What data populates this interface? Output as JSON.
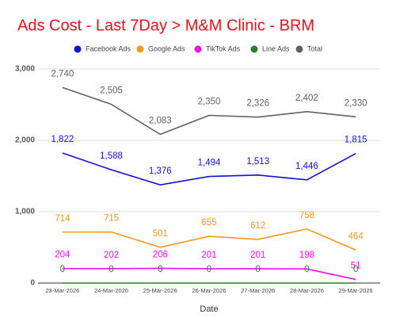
{
  "chart_data": {
    "type": "line",
    "title": "Ads Cost - Last 7Day > M&M Clinic - BRM",
    "x_label": "Date",
    "categories": [
      "23-Mar-2026",
      "24-Mar-2026",
      "25-Mar-2026",
      "26-Mar-2026",
      "27-Mar-2026",
      "28-Mar-2026",
      "29-Mar-2026"
    ],
    "series": [
      {
        "name": "Facebook Ads",
        "color": "#1010d8",
        "values": [
          1822,
          1588,
          1376,
          1494,
          1513,
          1446,
          1815
        ],
        "value_labels": [
          "1,822",
          "1,588",
          "1,376",
          "1,494",
          "1,513",
          "1,446",
          "1,815"
        ]
      },
      {
        "name": "Google Ads",
        "color": "#f09a1a",
        "values": [
          714,
          715,
          501,
          655,
          612,
          758,
          464
        ]
      },
      {
        "name": "TikTok Ads",
        "color": "#f010e8",
        "values": [
          204,
          202,
          206,
          201,
          201,
          198,
          51
        ]
      },
      {
        "name": "Line Ads",
        "color": "#2e7d32",
        "values": [
          0,
          0,
          0,
          0,
          0,
          0,
          0
        ]
      },
      {
        "name": "Total",
        "color": "#616161",
        "values": [
          2740,
          2505,
          2083,
          2350,
          2326,
          2402,
          2330
        ],
        "value_labels": [
          "2,740",
          "2,505",
          "2,083",
          "2,350",
          "2,326",
          "2,402",
          "2,330"
        ]
      }
    ],
    "ylim": [
      0,
      3000
    ],
    "yticks": [
      0,
      {
        "value": 1000,
        "label": "1,000"
      },
      {
        "value": 2000,
        "label": "2,000"
      },
      {
        "value": 3000,
        "label": "3,000"
      }
    ],
    "grid": true,
    "legend": "top"
  }
}
